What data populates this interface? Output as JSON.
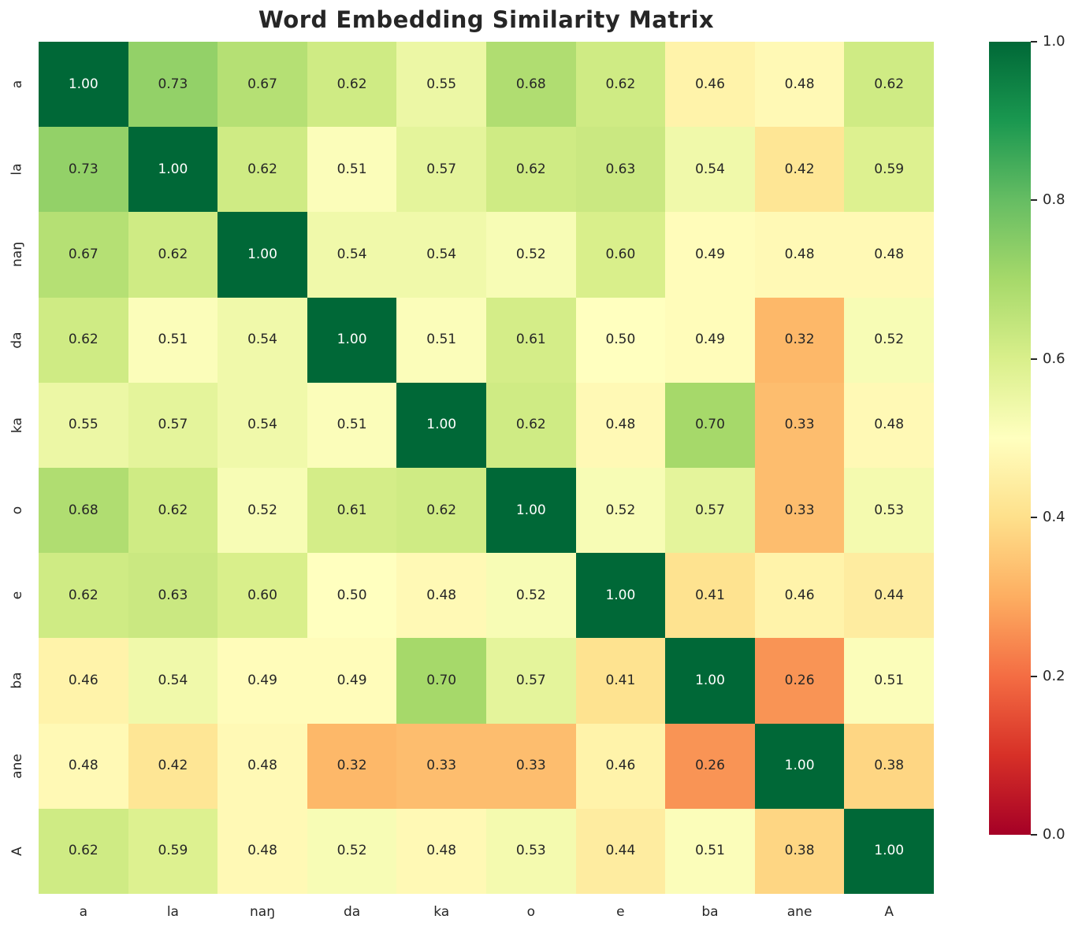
{
  "chart_data": {
    "type": "heatmap",
    "title": "Word Embedding Similarity Matrix",
    "categories": [
      "a",
      "la",
      "naŋ",
      "da",
      "ka",
      "o",
      "e",
      "ba",
      "ane",
      "A"
    ],
    "matrix": [
      [
        1.0,
        0.73,
        0.67,
        0.62,
        0.55,
        0.68,
        0.62,
        0.46,
        0.48,
        0.62
      ],
      [
        0.73,
        1.0,
        0.62,
        0.51,
        0.57,
        0.62,
        0.63,
        0.54,
        0.42,
        0.59
      ],
      [
        0.67,
        0.62,
        1.0,
        0.54,
        0.54,
        0.52,
        0.6,
        0.49,
        0.48,
        0.48
      ],
      [
        0.62,
        0.51,
        0.54,
        1.0,
        0.51,
        0.61,
        0.5,
        0.49,
        0.32,
        0.52
      ],
      [
        0.55,
        0.57,
        0.54,
        0.51,
        1.0,
        0.62,
        0.48,
        0.7,
        0.33,
        0.48
      ],
      [
        0.68,
        0.62,
        0.52,
        0.61,
        0.62,
        1.0,
        0.52,
        0.57,
        0.33,
        0.53
      ],
      [
        0.62,
        0.63,
        0.6,
        0.5,
        0.48,
        0.52,
        1.0,
        0.41,
        0.46,
        0.44
      ],
      [
        0.46,
        0.54,
        0.49,
        0.49,
        0.7,
        0.57,
        0.41,
        1.0,
        0.26,
        0.51
      ],
      [
        0.48,
        0.42,
        0.48,
        0.32,
        0.33,
        0.33,
        0.46,
        0.26,
        1.0,
        0.38
      ],
      [
        0.62,
        0.59,
        0.48,
        0.52,
        0.48,
        0.53,
        0.44,
        0.51,
        0.38,
        1.0
      ]
    ],
    "cell_label_decimals": 2,
    "vmin": 0.0,
    "vmax": 1.0,
    "grid": false,
    "legend_position": "right-colorbar",
    "colormap": "RdYlGn",
    "colormap_stops": [
      {
        "pos": 0.0,
        "color": "#a50026"
      },
      {
        "pos": 0.1,
        "color": "#d73027"
      },
      {
        "pos": 0.2,
        "color": "#f46d43"
      },
      {
        "pos": 0.3,
        "color": "#fdae61"
      },
      {
        "pos": 0.4,
        "color": "#fee08b"
      },
      {
        "pos": 0.5,
        "color": "#ffffbf"
      },
      {
        "pos": 0.6,
        "color": "#d9ef8b"
      },
      {
        "pos": 0.7,
        "color": "#a6d96a"
      },
      {
        "pos": 0.8,
        "color": "#66bd63"
      },
      {
        "pos": 0.9,
        "color": "#1a9850"
      },
      {
        "pos": 1.0,
        "color": "#006837"
      }
    ],
    "colorbar_ticks": [
      {
        "value": 1.0,
        "label": "1.0"
      },
      {
        "value": 0.8,
        "label": "0.8"
      },
      {
        "value": 0.6,
        "label": "0.6"
      },
      {
        "value": 0.4,
        "label": "0.4"
      },
      {
        "value": 0.2,
        "label": "0.2"
      },
      {
        "value": 0.0,
        "label": "0.0"
      }
    ]
  },
  "colors": {
    "background": "#ffffff",
    "title_text": "#262626",
    "axis_text": "#262626",
    "cell_text_dark": "#262626",
    "cell_text_light": "#ffffff"
  }
}
